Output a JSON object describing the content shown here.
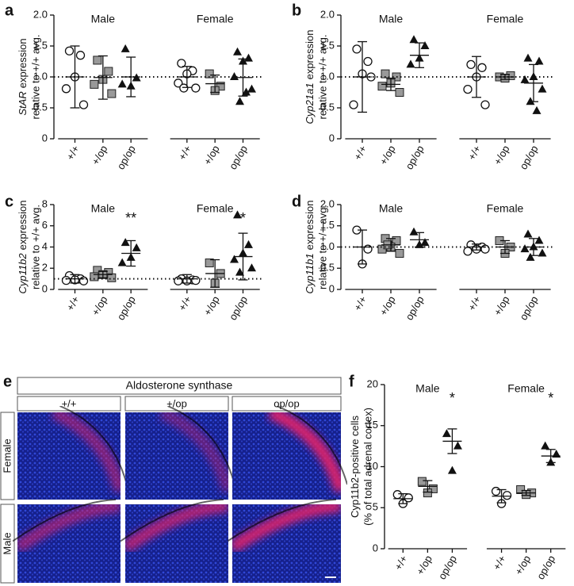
{
  "chart_data": [
    {
      "type": "dotplot",
      "panel": "a",
      "ylabel_italic": "StAR",
      "ylabel": [
        "expression",
        "relative to +/+ avg."
      ],
      "ylim": [
        0,
        2
      ],
      "yticks": [
        0,
        0.5,
        {
          "value": 1,
          "label": "1.0"
        },
        1.5,
        {
          "value": 2,
          "label": "2.0"
        }
      ],
      "reference_line": 1,
      "groups": [
        {
          "name": "Male",
          "series": [
            {
              "name": "+/+",
              "marker": "circle",
              "values": [
                1.42,
                1.35,
                1.0,
                0.81,
                0.55
              ],
              "mean": 1.0,
              "error": 0.5
            },
            {
              "name": "+/op",
              "marker": "square",
              "values": [
                1.27,
                1.09,
                0.96,
                0.88,
                0.73
              ],
              "mean": 0.99,
              "error": 0.35
            },
            {
              "name": "op/op",
              "marker": "triangle",
              "values": [
                1.45,
                0.98,
                0.85,
                0.88
              ],
              "mean": 1.0,
              "error": 0.32
            }
          ]
        },
        {
          "name": "Female",
          "series": [
            {
              "name": "+/+",
              "marker": "circle",
              "values": [
                1.22,
                1.1,
                1.05,
                0.9,
                0.82,
                0.82
              ],
              "mean": 1.0,
              "error": 0.17
            },
            {
              "name": "+/op",
              "marker": "square",
              "values": [
                1.05,
                0.85,
                0.78
              ],
              "mean": 0.89,
              "error": 0.14
            },
            {
              "name": "op/op",
              "marker": "triangle",
              "values": [
                1.4,
                1.3,
                1.25,
                1.0,
                0.8,
                0.6,
                0.75
              ],
              "mean": 0.99,
              "error": 0.3
            }
          ]
        }
      ]
    },
    {
      "type": "dotplot",
      "panel": "b",
      "ylabel_italic": "Cyp21a1",
      "ylabel": [
        "expression",
        "relative to +/+ avg."
      ],
      "ylim": [
        0,
        2
      ],
      "yticks": [
        0,
        0.5,
        {
          "value": 1,
          "label": "1.0"
        },
        1.5,
        {
          "value": 2,
          "label": "2.0"
        }
      ],
      "reference_line": 1,
      "groups": [
        {
          "name": "Male",
          "series": [
            {
              "name": "+/+",
              "marker": "circle",
              "values": [
                1.45,
                1.25,
                1.05,
                0.55,
                1.0
              ],
              "mean": 1.0,
              "error": 0.57
            },
            {
              "name": "+/op",
              "marker": "square",
              "values": [
                1.05,
                1.0,
                0.9,
                0.85,
                0.75
              ],
              "mean": 0.88,
              "error": 0.1
            },
            {
              "name": "op/op",
              "marker": "triangle",
              "values": [
                1.6,
                1.5,
                1.3,
                1.2
              ],
              "mean": 1.35,
              "error": 0.2
            }
          ]
        },
        {
          "name": "Female",
          "series": [
            {
              "name": "+/+",
              "marker": "circle",
              "values": [
                1.2,
                1.15,
                1.0,
                0.8,
                0.55
              ],
              "mean": 1.0,
              "error": 0.33
            },
            {
              "name": "+/op",
              "marker": "square",
              "values": [
                1.0,
                1.02,
                0.98
              ],
              "mean": 1.0,
              "error": 0.04
            },
            {
              "name": "op/op",
              "marker": "triangle",
              "values": [
                1.3,
                1.25,
                1.0,
                0.95,
                0.8,
                0.6,
                0.45
              ],
              "mean": 0.9,
              "error": 0.3
            }
          ]
        }
      ]
    },
    {
      "type": "dotplot",
      "panel": "c",
      "ylabel_italic": "Cyp11b2",
      "ylabel": [
        "expression",
        "relative to +/+ avg."
      ],
      "ylim": [
        0,
        8
      ],
      "yticks": [
        0,
        2,
        4,
        6,
        8
      ],
      "reference_line": 1,
      "groups": [
        {
          "name": "Male",
          "series": [
            {
              "name": "+/+",
              "marker": "circle",
              "values": [
                1.3,
                1.0,
                0.9,
                0.85,
                0.8
              ],
              "mean": 1.0,
              "error": 0.4
            },
            {
              "name": "+/op",
              "marker": "square",
              "values": [
                1.8,
                1.6,
                1.4,
                1.2,
                1.1
              ],
              "mean": 1.4,
              "error": 0.3
            },
            {
              "name": "op/op",
              "marker": "triangle",
              "values": [
                4.4,
                3.9,
                3.0,
                2.5
              ],
              "mean": 3.4,
              "error": 1.2,
              "annotation": "**"
            }
          ]
        },
        {
          "name": "Female",
          "series": [
            {
              "name": "+/+",
              "marker": "circle",
              "values": [
                1.0,
                0.9,
                0.8,
                0.8,
                0.85
              ],
              "mean": 1.0,
              "error": 0.4
            },
            {
              "name": "+/op",
              "marker": "square",
              "values": [
                2.5,
                1.5,
                0.6
              ],
              "mean": 1.5,
              "error": 1.3
            },
            {
              "name": "op/op",
              "marker": "triangle",
              "values": [
                7.0,
                4.2,
                3.4,
                2.8,
                2.0,
                1.6
              ],
              "mean": 3.1,
              "error": 2.2,
              "annotation": "*"
            }
          ]
        }
      ]
    },
    {
      "type": "dotplot",
      "panel": "d",
      "ylabel_italic": "Cyp11b1",
      "ylabel": [
        "expression",
        "relative to +/+ avg."
      ],
      "ylim": [
        0,
        2
      ],
      "yticks": [
        0,
        0.5,
        {
          "value": 1,
          "label": "1.0"
        },
        1.5,
        {
          "value": 2,
          "label": "2.0"
        }
      ],
      "reference_line": 1,
      "groups": [
        {
          "name": "Male",
          "series": [
            {
              "name": "+/+",
              "marker": "circle",
              "values": [
                1.4,
                0.95,
                0.6
              ],
              "mean": 1.0,
              "error": 0.4
            },
            {
              "name": "+/op",
              "marker": "square",
              "values": [
                1.2,
                1.15,
                1.0,
                0.95,
                0.85,
                1.05
              ],
              "mean": 1.05,
              "error": 0.15
            },
            {
              "name": "op/op",
              "marker": "triangle",
              "values": [
                1.35,
                1.1,
                1.05
              ],
              "mean": 1.17,
              "error": 0.17
            }
          ]
        },
        {
          "name": "Female",
          "series": [
            {
              "name": "+/+",
              "marker": "circle",
              "values": [
                1.05,
                1.0,
                0.95,
                0.9,
                0.95
              ],
              "mean": 1.0,
              "error": 0.07
            },
            {
              "name": "+/op",
              "marker": "square",
              "values": [
                1.15,
                1.0,
                0.85
              ],
              "mean": 1.0,
              "error": 0.15
            },
            {
              "name": "op/op",
              "marker": "triangle",
              "values": [
                1.3,
                1.15,
                1.0,
                0.95,
                0.85,
                0.75
              ],
              "mean": 1.0,
              "error": 0.2
            }
          ]
        }
      ]
    },
    {
      "type": "dotplot",
      "panel": "f",
      "ylabel": [
        "Cyp11b2-positive cells",
        "(% of total adrenal cortex)"
      ],
      "ylim": [
        0,
        20
      ],
      "yticks": [
        0,
        5,
        10,
        15,
        20
      ],
      "groups": [
        {
          "name": "Male",
          "series": [
            {
              "name": "+/+",
              "marker": "circle",
              "values": [
                6.6,
                6.2,
                5.5
              ],
              "mean": 6.1,
              "error": 0.6
            },
            {
              "name": "+/op",
              "marker": "square",
              "values": [
                8.2,
                7.3,
                6.8
              ],
              "mean": 7.6,
              "error": 0.7
            },
            {
              "name": "op/op",
              "marker": "triangle",
              "values": [
                14.0,
                12.5,
                9.5
              ],
              "mean": 13.1,
              "error": 1.5,
              "annotation": "*"
            }
          ]
        },
        {
          "name": "Female",
          "series": [
            {
              "name": "+/+",
              "marker": "circle",
              "values": [
                7.0,
                6.5,
                5.5
              ],
              "mean": 6.4,
              "error": 0.8
            },
            {
              "name": "+/op",
              "marker": "square",
              "values": [
                7.2,
                6.8,
                6.6
              ],
              "mean": 6.8,
              "error": 0.3
            },
            {
              "name": "op/op",
              "marker": "triangle",
              "values": [
                12.5,
                11.5,
                10.5
              ],
              "mean": 11.3,
              "error": 0.8,
              "annotation": "*"
            }
          ]
        }
      ]
    }
  ],
  "panel_e": {
    "panel": "e",
    "title": "Aldosterone synthase",
    "columns": [
      "+/+",
      "+/op",
      "op/op"
    ],
    "rows": [
      "Female",
      "Male"
    ]
  }
}
